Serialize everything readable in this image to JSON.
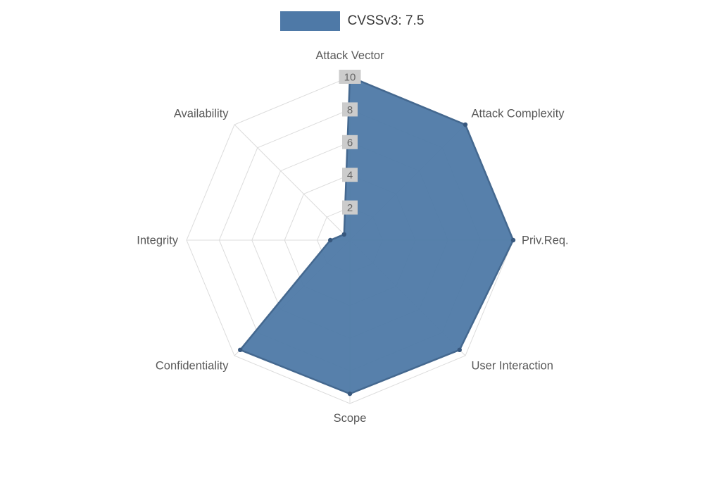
{
  "page": {
    "background": "#ffffff"
  },
  "legend": {
    "label": "CVSSv3: 7.5",
    "swatch_color": "#4e79a7"
  },
  "chart_data": {
    "type": "radar",
    "title": "",
    "categories": [
      "Attack Vector",
      "Attack Complexity",
      "Priv.Req.",
      "User Interaction",
      "Scope",
      "Confidentiality",
      "Integrity",
      "Availability"
    ],
    "series": [
      {
        "name": "CVSSv3: 7.5",
        "values": [
          10,
          10,
          10,
          9.5,
          9.4,
          9.5,
          1.2,
          0.5
        ]
      }
    ],
    "scale": {
      "min": 0,
      "max": 10,
      "ticks": [
        2,
        4,
        6,
        8,
        10
      ]
    },
    "grid": true,
    "legend_position": "top",
    "colors": {
      "fill": "#4e79a7",
      "fill_opacity": 0.95,
      "stroke": "#44688f",
      "point": "#38587e",
      "grid_line": "#dcdcdc",
      "tick_text": "#666666",
      "tick_backdrop": "#cccccc",
      "axis_label": "#595959"
    }
  }
}
